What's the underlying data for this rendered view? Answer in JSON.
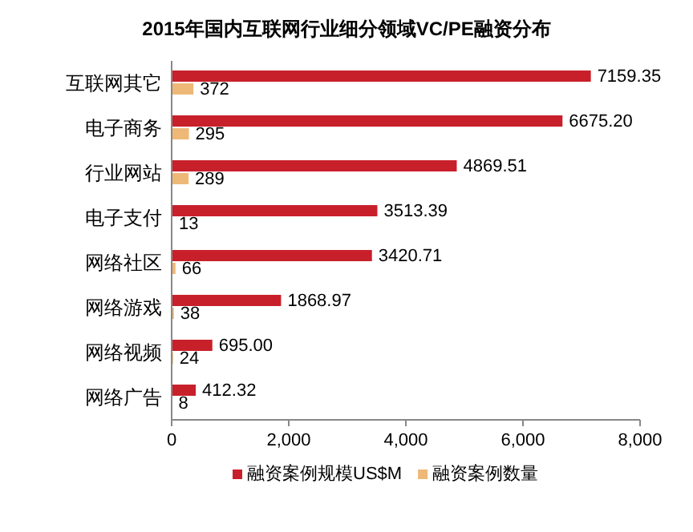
{
  "chart_data": {
    "type": "bar",
    "orientation": "horizontal",
    "title": "2015年国内互联网行业细分领域VC/PE融资分布",
    "categories": [
      "互联网其它",
      "电子商务",
      "行业网站",
      "电子支付",
      "网络社区",
      "网络游戏",
      "网络视频",
      "网络广告"
    ],
    "series": [
      {
        "name": "融资案例规模US$M",
        "color": "#c8202b",
        "values": [
          7159.35,
          6675.2,
          4869.51,
          3513.39,
          3420.71,
          1868.97,
          695.0,
          412.32
        ],
        "value_labels": [
          "7159.35",
          "6675.20",
          "4869.51",
          "3513.39",
          "3420.71",
          "1868.97",
          "695.00",
          "412.32"
        ]
      },
      {
        "name": "融资案例数量",
        "color": "#eeb877",
        "values": [
          372,
          295,
          289,
          13,
          66,
          38,
          24,
          8
        ],
        "value_labels": [
          "372",
          "295",
          "289",
          "13",
          "66",
          "38",
          "24",
          "8"
        ]
      }
    ],
    "xlim": [
      0,
      8000
    ],
    "xticks": [
      0,
      {
        "value": 2000,
        "label": "2,000"
      },
      {
        "value": 4000,
        "label": "4,000"
      },
      {
        "value": 6000,
        "label": "6,000"
      },
      {
        "value": 8000,
        "label": "8,000"
      }
    ],
    "legend": "bottom"
  }
}
